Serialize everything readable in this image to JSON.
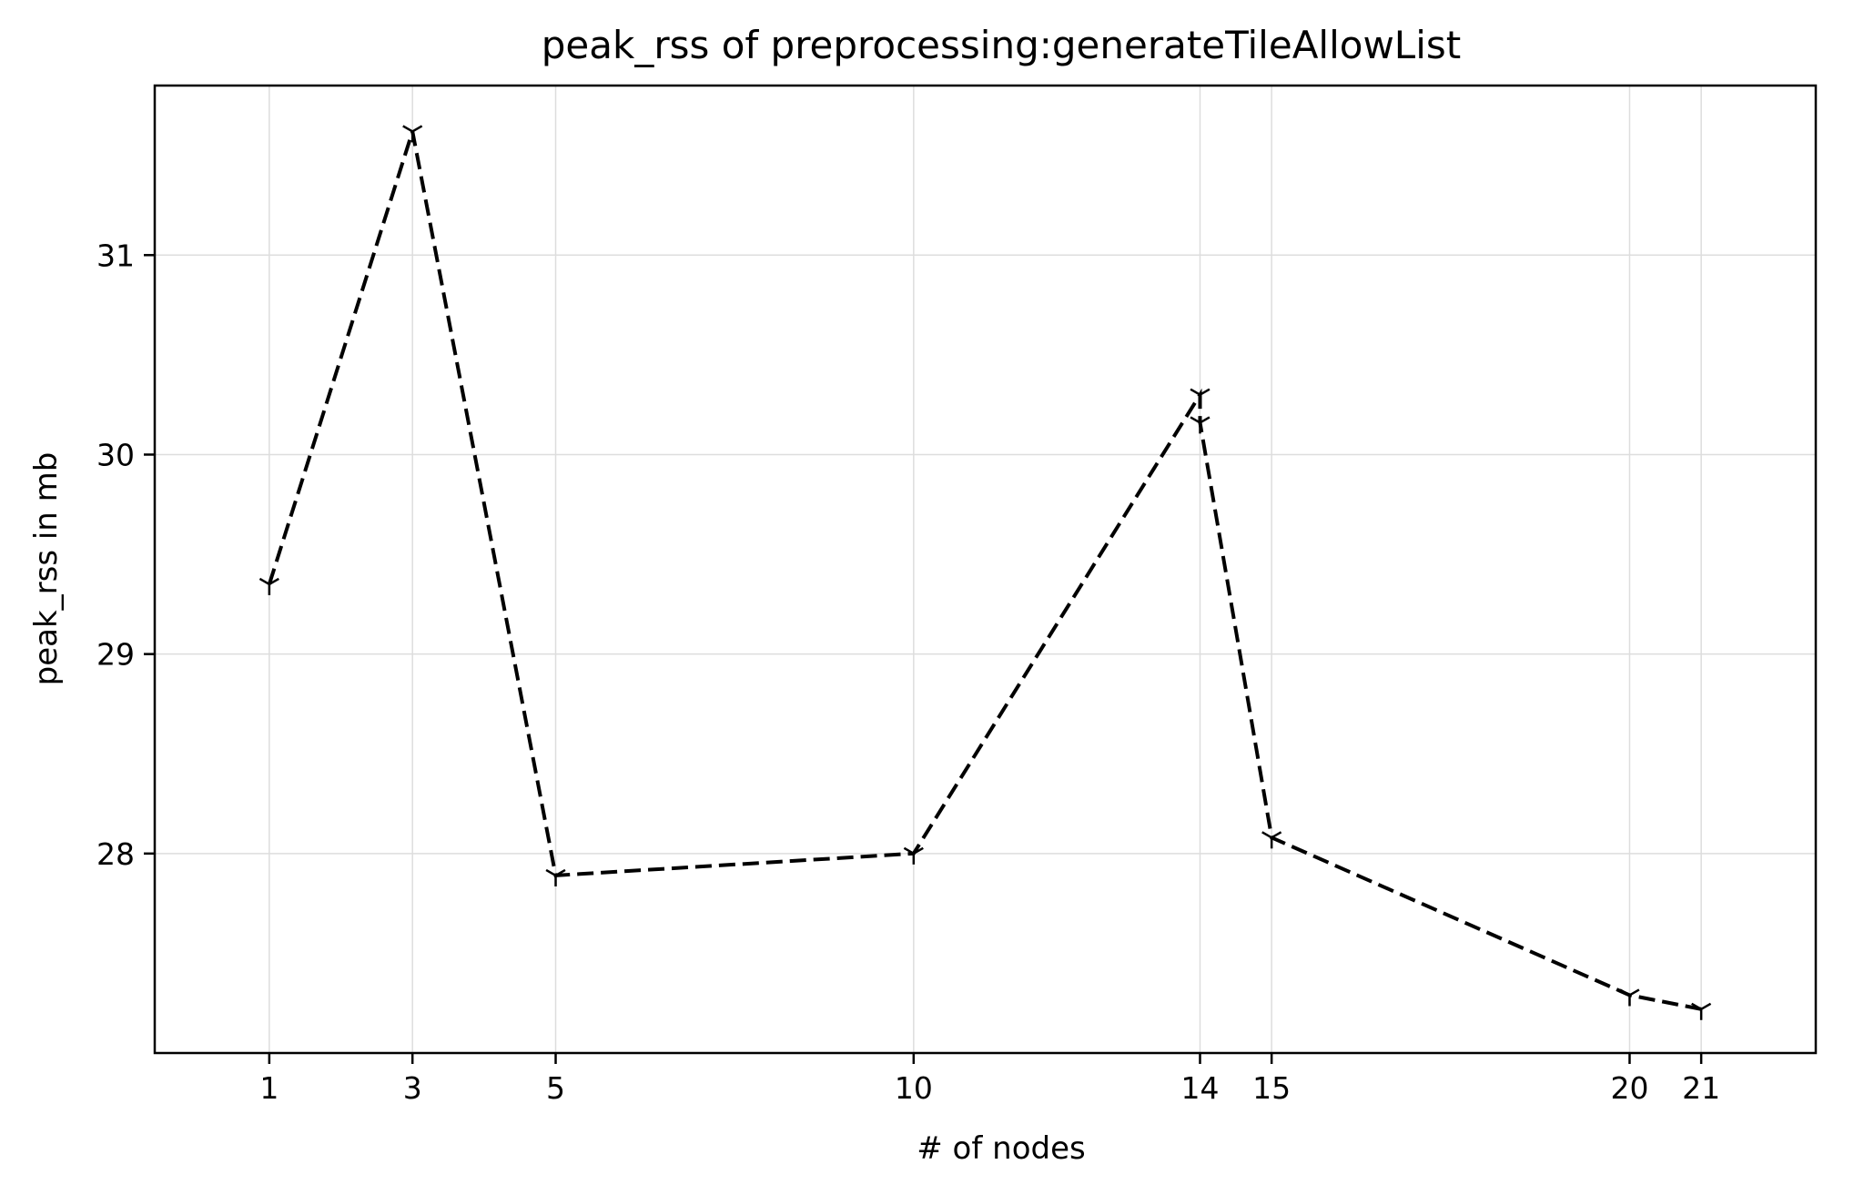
{
  "chart_data": {
    "type": "line",
    "title": "peak_rss of preprocessing:generateTileAllowList",
    "xlabel": "# of nodes",
    "ylabel": "peak_rss in mb",
    "x_ticks": [
      1,
      3,
      5,
      10,
      14,
      15,
      20,
      21
    ],
    "y_ticks": [
      28,
      29,
      30,
      31
    ],
    "xlim": [
      -0.6,
      22.6
    ],
    "ylim": [
      27.0,
      31.85
    ],
    "grid": true,
    "legend": "none",
    "series": [
      {
        "color": "#000000",
        "line_style": "dashed",
        "marker": "tri",
        "x": [
          1,
          3,
          5,
          10,
          14,
          14,
          15,
          20,
          21
        ],
        "y": [
          29.35,
          31.62,
          27.89,
          28.0,
          30.3,
          30.16,
          28.08,
          27.29,
          27.22
        ]
      }
    ]
  }
}
